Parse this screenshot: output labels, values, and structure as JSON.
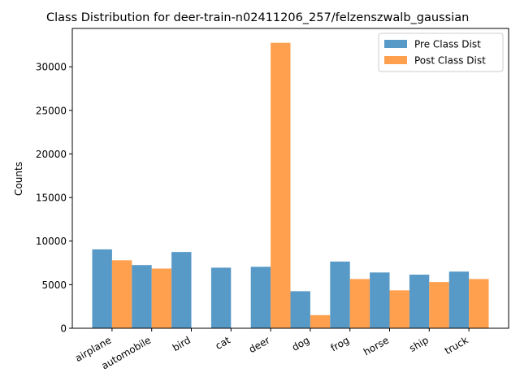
{
  "chart_data": {
    "type": "bar",
    "title": "Class Distribution for deer-train-n02411206_257/felzenszwalb_gaussian",
    "xlabel": "",
    "ylabel": "Counts",
    "categories": [
      "airplane",
      "automobile",
      "bird",
      "cat",
      "deer",
      "dog",
      "frog",
      "horse",
      "ship",
      "truck"
    ],
    "series": [
      {
        "name": "Pre Class Dist",
        "color": "#5799c7",
        "values": [
          9050,
          7250,
          8750,
          6950,
          7050,
          4250,
          7650,
          6400,
          6150,
          6500
        ]
      },
      {
        "name": "Post Class Dist",
        "color": "#ffa04e",
        "values": [
          7800,
          6850,
          0,
          0,
          32750,
          1500,
          5650,
          4350,
          5300,
          5650
        ]
      }
    ],
    "yticks": [
      0,
      5000,
      10000,
      15000,
      20000,
      25000,
      30000
    ],
    "ylim": [
      0,
      34400
    ],
    "legend": "top-right",
    "grid": false
  }
}
